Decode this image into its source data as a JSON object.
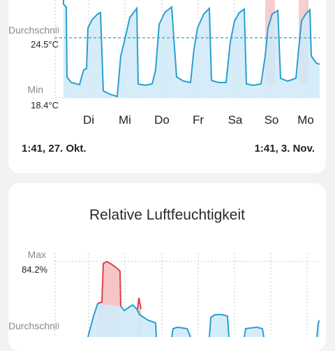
{
  "temperature_card": {
    "labels": {
      "average": "Durchschnitt",
      "average_value": "24.5°C",
      "min": "Min",
      "min_value": "18.4°C"
    },
    "days": [
      "Di",
      "Mi",
      "Do",
      "Fr",
      "Sa",
      "So",
      "Mo"
    ],
    "time_start": "1:41,  27. Okt.",
    "time_end": "1:41,  3. Nov.",
    "colors": {
      "line": "#2a9fd0",
      "fill": "#bfe3f6",
      "high": "#f7c5c8",
      "grid": "#c9c9c9",
      "avg_line": "#2a9fd0"
    }
  },
  "humidity_card": {
    "title": "Relative Luftfeuchtigkeit",
    "labels": {
      "max": "Max",
      "max_value": "84.2%",
      "average": "Durchschnitt"
    },
    "colors": {
      "line": "#2a9fd0",
      "fill": "#bfe3f6",
      "high_line": "#d9434b",
      "high_fill": "#f7c5c8",
      "grid": "#c9c9c9"
    }
  }
}
